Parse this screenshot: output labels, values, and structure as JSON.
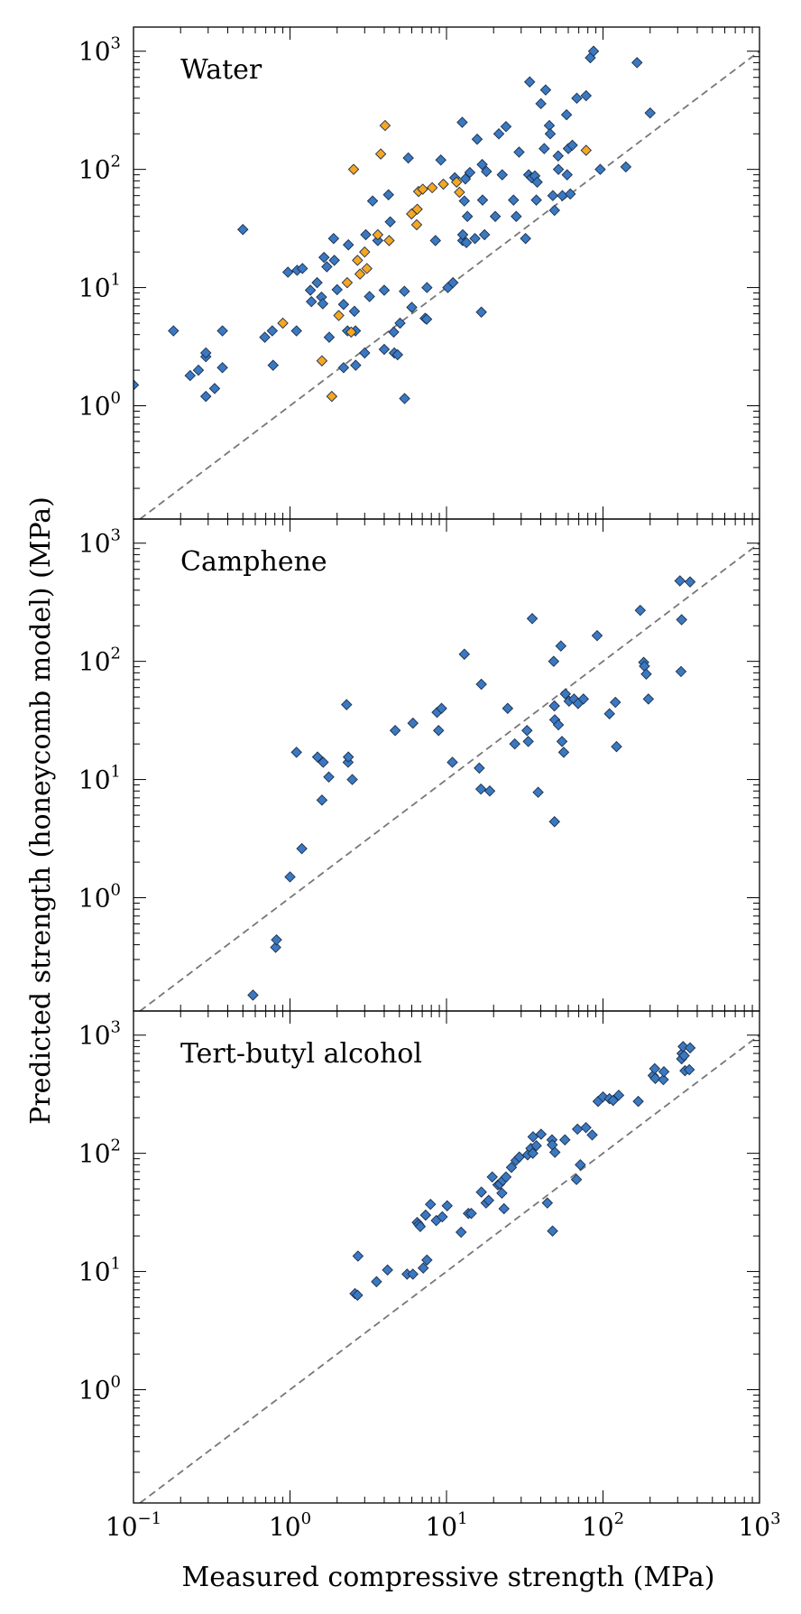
{
  "figure": {
    "xlabel": "Measured compressive strength (MPa)",
    "ylabel": "Predicted strength (honeycomb model) (MPa)"
  },
  "colors": {
    "series_blue": "#3a78c2",
    "series_orange": "#f5a623",
    "marker_edge": "#1d2f48",
    "reference_line": "#777777"
  },
  "chart_data": [
    {
      "type": "scatter",
      "title": "Water",
      "x_scale": "log",
      "y_scale": "log",
      "xlim": [
        0.1,
        1000
      ],
      "ylim": [
        0.11,
        1600
      ],
      "grid": false,
      "legend": "none",
      "reference_line": "y = x",
      "x_ticks": [
        "10^-1",
        "10^0",
        "10^1",
        "10^2",
        "10^3"
      ],
      "y_ticks": [
        "10^0",
        "10^1",
        "10^2",
        "10^3"
      ],
      "series": [
        {
          "color": "#3a78c2",
          "points": [
            [
              0.1,
              1.5
            ],
            [
              0.18,
              4.3
            ],
            [
              0.23,
              1.8
            ],
            [
              0.26,
              2.0
            ],
            [
              0.29,
              2.6
            ],
            [
              0.29,
              2.8
            ],
            [
              0.29,
              1.2
            ],
            [
              0.33,
              1.4
            ],
            [
              0.37,
              4.3
            ],
            [
              0.37,
              2.1
            ],
            [
              0.5,
              31
            ],
            [
              0.69,
              3.8
            ],
            [
              0.77,
              4.3
            ],
            [
              0.78,
              2.2
            ],
            [
              0.97,
              13.5
            ],
            [
              1.1,
              4.3
            ],
            [
              1.11,
              14
            ],
            [
              1.2,
              14.5
            ],
            [
              1.35,
              9.5
            ],
            [
              1.37,
              7.6
            ],
            [
              1.49,
              11
            ],
            [
              1.59,
              8.3
            ],
            [
              1.62,
              7.3
            ],
            [
              1.65,
              18
            ],
            [
              1.72,
              15
            ],
            [
              1.78,
              3.8
            ],
            [
              1.9,
              26
            ],
            [
              1.92,
              17
            ],
            [
              2.0,
              9.6
            ],
            [
              2.2,
              2.1
            ],
            [
              2.2,
              7.2
            ],
            [
              2.33,
              4.3
            ],
            [
              2.36,
              23
            ],
            [
              2.58,
              6.3
            ],
            [
              2.62,
              4.3
            ],
            [
              2.63,
              2.2
            ],
            [
              3.05,
              28
            ],
            [
              3.0,
              2.8
            ],
            [
              3.22,
              8.4
            ],
            [
              3.37,
              54
            ],
            [
              3.64,
              25
            ],
            [
              4.0,
              9.5
            ],
            [
              4.0,
              3.0
            ],
            [
              4.26,
              61
            ],
            [
              4.37,
              36
            ],
            [
              4.6,
              4.2
            ],
            [
              4.64,
              2.8
            ],
            [
              4.87,
              2.7
            ],
            [
              5.05,
              5.0
            ],
            [
              5.38,
              9.3
            ],
            [
              5.4,
              1.15
            ],
            [
              5.7,
              125
            ],
            [
              6.0,
              6.8
            ],
            [
              7.3,
              5.5
            ],
            [
              7.47,
              5.4
            ],
            [
              7.5,
              10
            ],
            [
              8.5,
              25
            ],
            [
              9.2,
              120
            ],
            [
              10.2,
              10
            ],
            [
              11.0,
              11
            ],
            [
              11.3,
              85
            ],
            [
              12.6,
              250
            ],
            [
              12.7,
              25
            ],
            [
              12.7,
              28
            ],
            [
              13.6,
              40
            ],
            [
              13.0,
              54
            ],
            [
              13.2,
              83
            ],
            [
              13.4,
              24
            ],
            [
              14.1,
              94
            ],
            [
              15.2,
              26
            ],
            [
              15.7,
              180
            ],
            [
              16.7,
              6.2
            ],
            [
              16.9,
              110
            ],
            [
              17.0,
              55
            ],
            [
              17.5,
              28
            ],
            [
              18.0,
              96
            ],
            [
              20.5,
              40
            ],
            [
              21.6,
              200
            ],
            [
              22.7,
              90
            ],
            [
              24.0,
              230
            ],
            [
              26.8,
              55
            ],
            [
              27.9,
              40
            ],
            [
              29.1,
              140
            ],
            [
              32.0,
              26
            ],
            [
              33.5,
              90
            ],
            [
              34.0,
              550
            ],
            [
              35.0,
              85
            ],
            [
              36.7,
              88
            ],
            [
              37.5,
              55
            ],
            [
              38.0,
              78
            ],
            [
              40.1,
              360
            ],
            [
              42.1,
              150
            ],
            [
              43.0,
              470
            ],
            [
              45.4,
              235
            ],
            [
              46.0,
              200
            ],
            [
              47.8,
              60
            ],
            [
              49.0,
              45
            ],
            [
              51.9,
              100
            ],
            [
              51.7,
              130
            ],
            [
              55.0,
              60
            ],
            [
              58.5,
              290
            ],
            [
              59.0,
              90
            ],
            [
              60.0,
              150
            ],
            [
              61.8,
              62
            ],
            [
              63.7,
              160
            ],
            [
              68.0,
              400
            ],
            [
              78.0,
              420
            ],
            [
              83.0,
              880
            ],
            [
              87.0,
              1000
            ],
            [
              96.0,
              100
            ],
            [
              140,
              105
            ],
            [
              165,
              800
            ],
            [
              200,
              300
            ]
          ]
        },
        {
          "color": "#f5a623",
          "points": [
            [
              0.9,
              5.0
            ],
            [
              1.6,
              2.4
            ],
            [
              1.85,
              1.2
            ],
            [
              2.05,
              5.8
            ],
            [
              2.32,
              11
            ],
            [
              2.46,
              4.2
            ],
            [
              2.55,
              100
            ],
            [
              2.7,
              17
            ],
            [
              2.8,
              13
            ],
            [
              3.0,
              20
            ],
            [
              3.1,
              14.5
            ],
            [
              3.64,
              28
            ],
            [
              3.8,
              135
            ],
            [
              4.05,
              235
            ],
            [
              4.3,
              25
            ],
            [
              5.98,
              42
            ],
            [
              6.5,
              46
            ],
            [
              6.45,
              34
            ],
            [
              6.63,
              65
            ],
            [
              7.05,
              68
            ],
            [
              8.1,
              70
            ],
            [
              9.55,
              75
            ],
            [
              11.6,
              78
            ],
            [
              12.1,
              64
            ],
            [
              78,
              145
            ]
          ]
        }
      ]
    },
    {
      "type": "scatter",
      "title": "Camphene",
      "x_scale": "log",
      "y_scale": "log",
      "xlim": [
        0.1,
        1000
      ],
      "ylim": [
        0.11,
        1600
      ],
      "grid": false,
      "legend": "none",
      "reference_line": "y = x",
      "x_ticks": [
        "10^-1",
        "10^0",
        "10^1",
        "10^2",
        "10^3"
      ],
      "y_ticks": [
        "10^0",
        "10^1",
        "10^2",
        "10^3"
      ],
      "series": [
        {
          "color": "#3a78c2",
          "points": [
            [
              0.58,
              0.15
            ],
            [
              0.81,
              0.38
            ],
            [
              0.82,
              0.44
            ],
            [
              1.0,
              1.5
            ],
            [
              1.1,
              17
            ],
            [
              1.19,
              2.6
            ],
            [
              1.5,
              15.5
            ],
            [
              1.6,
              6.7
            ],
            [
              1.63,
              14
            ],
            [
              1.77,
              10.5
            ],
            [
              2.3,
              43
            ],
            [
              2.35,
              14
            ],
            [
              2.36,
              15.5
            ],
            [
              2.5,
              10
            ],
            [
              4.7,
              26
            ],
            [
              6.1,
              30
            ],
            [
              8.7,
              37
            ],
            [
              8.9,
              26
            ],
            [
              9.3,
              40
            ],
            [
              10.9,
              14
            ],
            [
              13.0,
              115
            ],
            [
              16.2,
              12.5
            ],
            [
              16.7,
              64
            ],
            [
              16.6,
              8.3
            ],
            [
              18.9,
              8.0
            ],
            [
              24.6,
              40
            ],
            [
              27.3,
              20
            ],
            [
              32.7,
              26
            ],
            [
              33.3,
              21
            ],
            [
              35.3,
              230
            ],
            [
              38.5,
              7.8
            ],
            [
              48.4,
              100
            ],
            [
              48.9,
              42
            ],
            [
              49.2,
              32
            ],
            [
              49.0,
              4.4
            ],
            [
              51.9,
              29
            ],
            [
              53.8,
              135
            ],
            [
              54.7,
              21
            ],
            [
              56.1,
              17
            ],
            [
              57.5,
              53
            ],
            [
              60.7,
              46
            ],
            [
              65.3,
              48
            ],
            [
              69.3,
              44
            ],
            [
              75.0,
              48
            ],
            [
              91.7,
              165
            ],
            [
              110,
              36
            ],
            [
              120,
              45
            ],
            [
              122,
              19
            ],
            [
              173,
              270
            ],
            [
              182,
              98
            ],
            [
              184,
              91
            ],
            [
              189,
              78
            ],
            [
              195,
              48
            ],
            [
              310,
              480
            ],
            [
              318,
              225
            ],
            [
              360,
              470
            ],
            [
              315,
              82
            ]
          ]
        }
      ]
    },
    {
      "type": "scatter",
      "title": "Tert-butyl alcohol",
      "x_scale": "log",
      "y_scale": "log",
      "xlim": [
        0.1,
        1000
      ],
      "ylim": [
        0.11,
        1600
      ],
      "grid": false,
      "legend": "none",
      "reference_line": "y = x",
      "x_ticks": [
        "10^-1",
        "10^0",
        "10^1",
        "10^2",
        "10^3"
      ],
      "y_ticks": [
        "10^0",
        "10^1",
        "10^2",
        "10^3"
      ],
      "series": [
        {
          "color": "#3a78c2",
          "points": [
            [
              2.6,
              6.5
            ],
            [
              2.7,
              6.3
            ],
            [
              2.72,
              13.5
            ],
            [
              3.57,
              8.2
            ],
            [
              4.2,
              10.3
            ],
            [
              5.6,
              9.5
            ],
            [
              6.1,
              9.5
            ],
            [
              6.5,
              26
            ],
            [
              6.65,
              25
            ],
            [
              6.8,
              24
            ],
            [
              7.1,
              10.7
            ],
            [
              7.35,
              30
            ],
            [
              7.5,
              12.5
            ],
            [
              7.9,
              37
            ],
            [
              8.6,
              27
            ],
            [
              9.4,
              29
            ],
            [
              10.1,
              36
            ],
            [
              12.4,
              21.5
            ],
            [
              13.8,
              31
            ],
            [
              14.4,
              31
            ],
            [
              16.7,
              47
            ],
            [
              17.9,
              38
            ],
            [
              18.6,
              40
            ],
            [
              19.6,
              63
            ],
            [
              21.3,
              54
            ],
            [
              21.9,
              55
            ],
            [
              22.6,
              46
            ],
            [
              22.9,
              59
            ],
            [
              23.3,
              34
            ],
            [
              24.0,
              63
            ],
            [
              26.0,
              76
            ],
            [
              27.8,
              87
            ],
            [
              29.2,
              93
            ],
            [
              33.0,
              97
            ],
            [
              34.6,
              110
            ],
            [
              35.6,
              100
            ],
            [
              35.7,
              138
            ],
            [
              37.5,
              116
            ],
            [
              40.2,
              145
            ],
            [
              44.1,
              38
            ],
            [
              47.2,
              130
            ],
            [
              47.4,
              118
            ],
            [
              47.6,
              22
            ],
            [
              49.3,
              102
            ],
            [
              57.1,
              130
            ],
            [
              67.7,
              60
            ],
            [
              68.7,
              160
            ],
            [
              71.6,
              80
            ],
            [
              77.8,
              165
            ],
            [
              85.3,
              143
            ],
            [
              93.0,
              275
            ],
            [
              100,
              300
            ],
            [
              110,
              290
            ],
            [
              116,
              280
            ],
            [
              126,
              310
            ],
            [
              168,
              275
            ],
            [
              209,
              455
            ],
            [
              214,
              520
            ],
            [
              216,
              430
            ],
            [
              243,
              420
            ],
            [
              245,
              490
            ],
            [
              318,
              630
            ],
            [
              320,
              700
            ],
            [
              325,
              800
            ],
            [
              330,
              670
            ],
            [
              334,
              500
            ],
            [
              356,
              510
            ],
            [
              360,
              780
            ]
          ]
        }
      ]
    }
  ]
}
